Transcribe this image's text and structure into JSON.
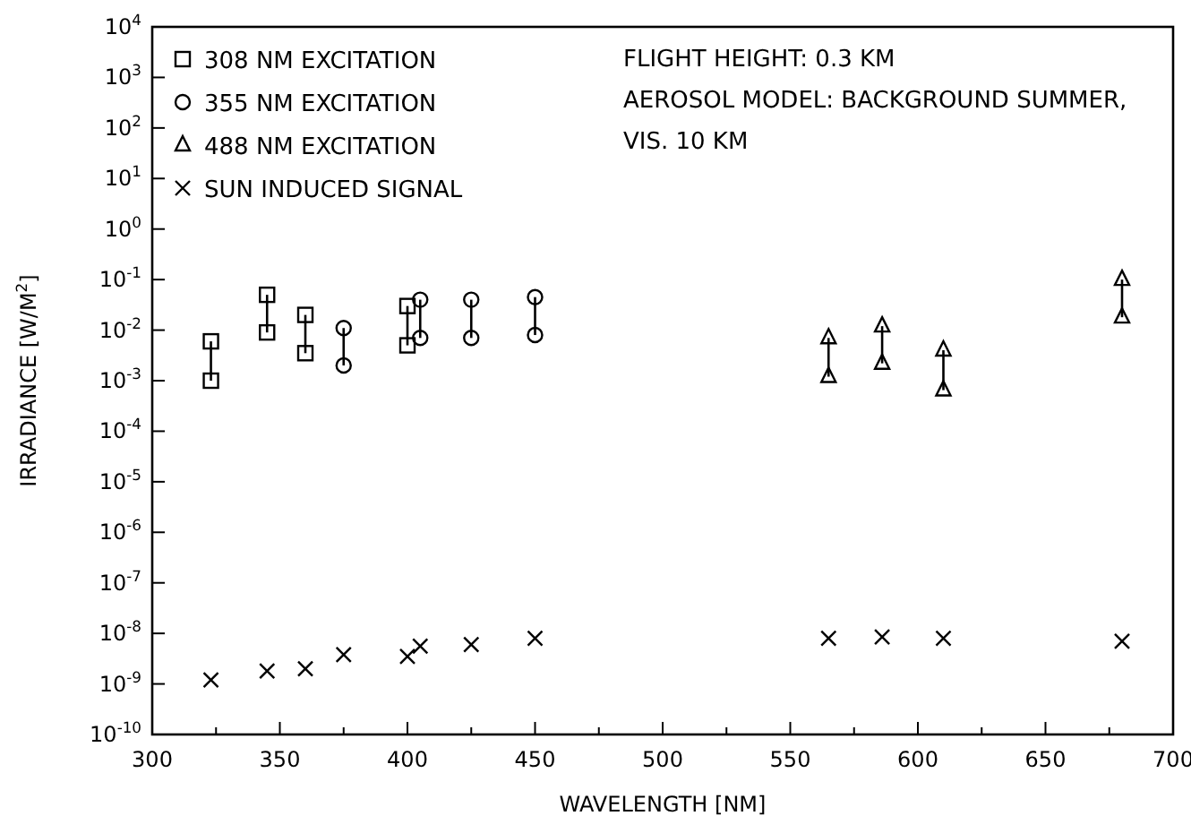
{
  "chart_data": {
    "type": "scatter",
    "xlabel": "WAVELENGTH [NM]",
    "ylabel": "IRRADIANCE [W/M$^{2}$]",
    "log": "y",
    "xlim": [
      300,
      700
    ],
    "ylim": [
      1e-10,
      10000
    ],
    "xticks": [
      300,
      {
        "value": 325,
        "label": null
      },
      350,
      {
        "value": 375,
        "label": null
      },
      400,
      {
        "value": 425,
        "label": null
      },
      450,
      {
        "value": 475,
        "label": null
      },
      500,
      {
        "value": 525,
        "label": null
      },
      550,
      {
        "value": 575,
        "label": null
      },
      600,
      {
        "value": 625,
        "label": null
      },
      650,
      {
        "value": 675,
        "label": null
      },
      700
    ],
    "yticks": [
      {
        "value": 1e-10,
        "label": "10$^{-10}$"
      },
      {
        "value": 1e-09,
        "label": "10$^{-9}$"
      },
      {
        "value": 1e-08,
        "label": "10$^{-8}$"
      },
      {
        "value": 1e-07,
        "label": "10$^{-7}$"
      },
      {
        "value": 1e-06,
        "label": "10$^{-6}$"
      },
      {
        "value": 1e-05,
        "label": "10$^{-5}$"
      },
      {
        "value": 0.0001,
        "label": "10$^{-4}$"
      },
      {
        "value": 0.001,
        "label": "10$^{-3}$"
      },
      {
        "value": 0.01,
        "label": "10$^{-2}$"
      },
      {
        "value": 0.1,
        "label": "10$^{-1}$"
      },
      {
        "value": 1,
        "label": "10$^{0}$"
      },
      {
        "value": 10,
        "label": "10$^{1}$"
      },
      {
        "value": 100,
        "label": "10$^{2}$"
      },
      {
        "value": 1000,
        "label": "10$^{3}$"
      },
      {
        "value": 10000,
        "label": "10$^{4}$"
      }
    ],
    "grid": false,
    "legend": "top left",
    "annotations": [
      "FLIGHT HEIGHT: 0.3 KM",
      "AEROSOL MODEL: BACKGROUND SUMMER,",
      "VIS. 10 KM"
    ],
    "series": [
      {
        "name": "308 NM EXCITATION",
        "color": "#000000",
        "marker": "square",
        "x": [
          323,
          323,
          345,
          345,
          360,
          360,
          400,
          400
        ],
        "values": [
          0.006,
          0.001,
          0.05,
          0.009,
          0.02,
          0.0035,
          0.03,
          0.005
        ],
        "errors": [
          [
            0.001,
            0.006
          ],
          null,
          [
            0.009,
            0.05
          ],
          null,
          [
            0.0035,
            0.02
          ],
          null,
          [
            0.005,
            0.03
          ],
          null
        ]
      },
      {
        "name": "355 NM EXCITATION",
        "color": "#000000",
        "marker": "circle",
        "x": [
          375,
          375,
          405,
          405,
          425,
          425,
          450,
          450
        ],
        "values": [
          0.011,
          0.002,
          0.04,
          0.007,
          0.04,
          0.007,
          0.045,
          0.008
        ],
        "errors": [
          [
            0.002,
            0.011
          ],
          null,
          [
            0.007,
            0.04
          ],
          null,
          [
            0.007,
            0.04
          ],
          null,
          [
            0.008,
            0.045
          ],
          null
        ]
      },
      {
        "name": "488 NM EXCITATION",
        "color": "#000000",
        "marker": "triangle",
        "x": [
          565,
          565,
          586,
          586,
          610,
          610,
          680,
          680
        ],
        "values": [
          0.007,
          0.0012,
          0.012,
          0.0022,
          0.004,
          0.00065,
          0.1,
          0.018
        ],
        "errors": [
          [
            0.0012,
            0.007
          ],
          null,
          [
            0.0022,
            0.012
          ],
          null,
          [
            0.00065,
            0.004
          ],
          null,
          [
            0.018,
            0.1
          ],
          null
        ]
      },
      {
        "name": "SUN INDUCED SIGNAL",
        "color": "#000000",
        "marker": "cross",
        "x": [
          323,
          345,
          360,
          375,
          400,
          405,
          425,
          450,
          565,
          586,
          610,
          680
        ],
        "values": [
          1.2e-09,
          1.8e-09,
          2e-09,
          3.8e-09,
          3.5e-09,
          5.6e-09,
          6e-09,
          8e-09,
          8e-09,
          8.5e-09,
          8e-09,
          7e-09
        ]
      }
    ]
  }
}
